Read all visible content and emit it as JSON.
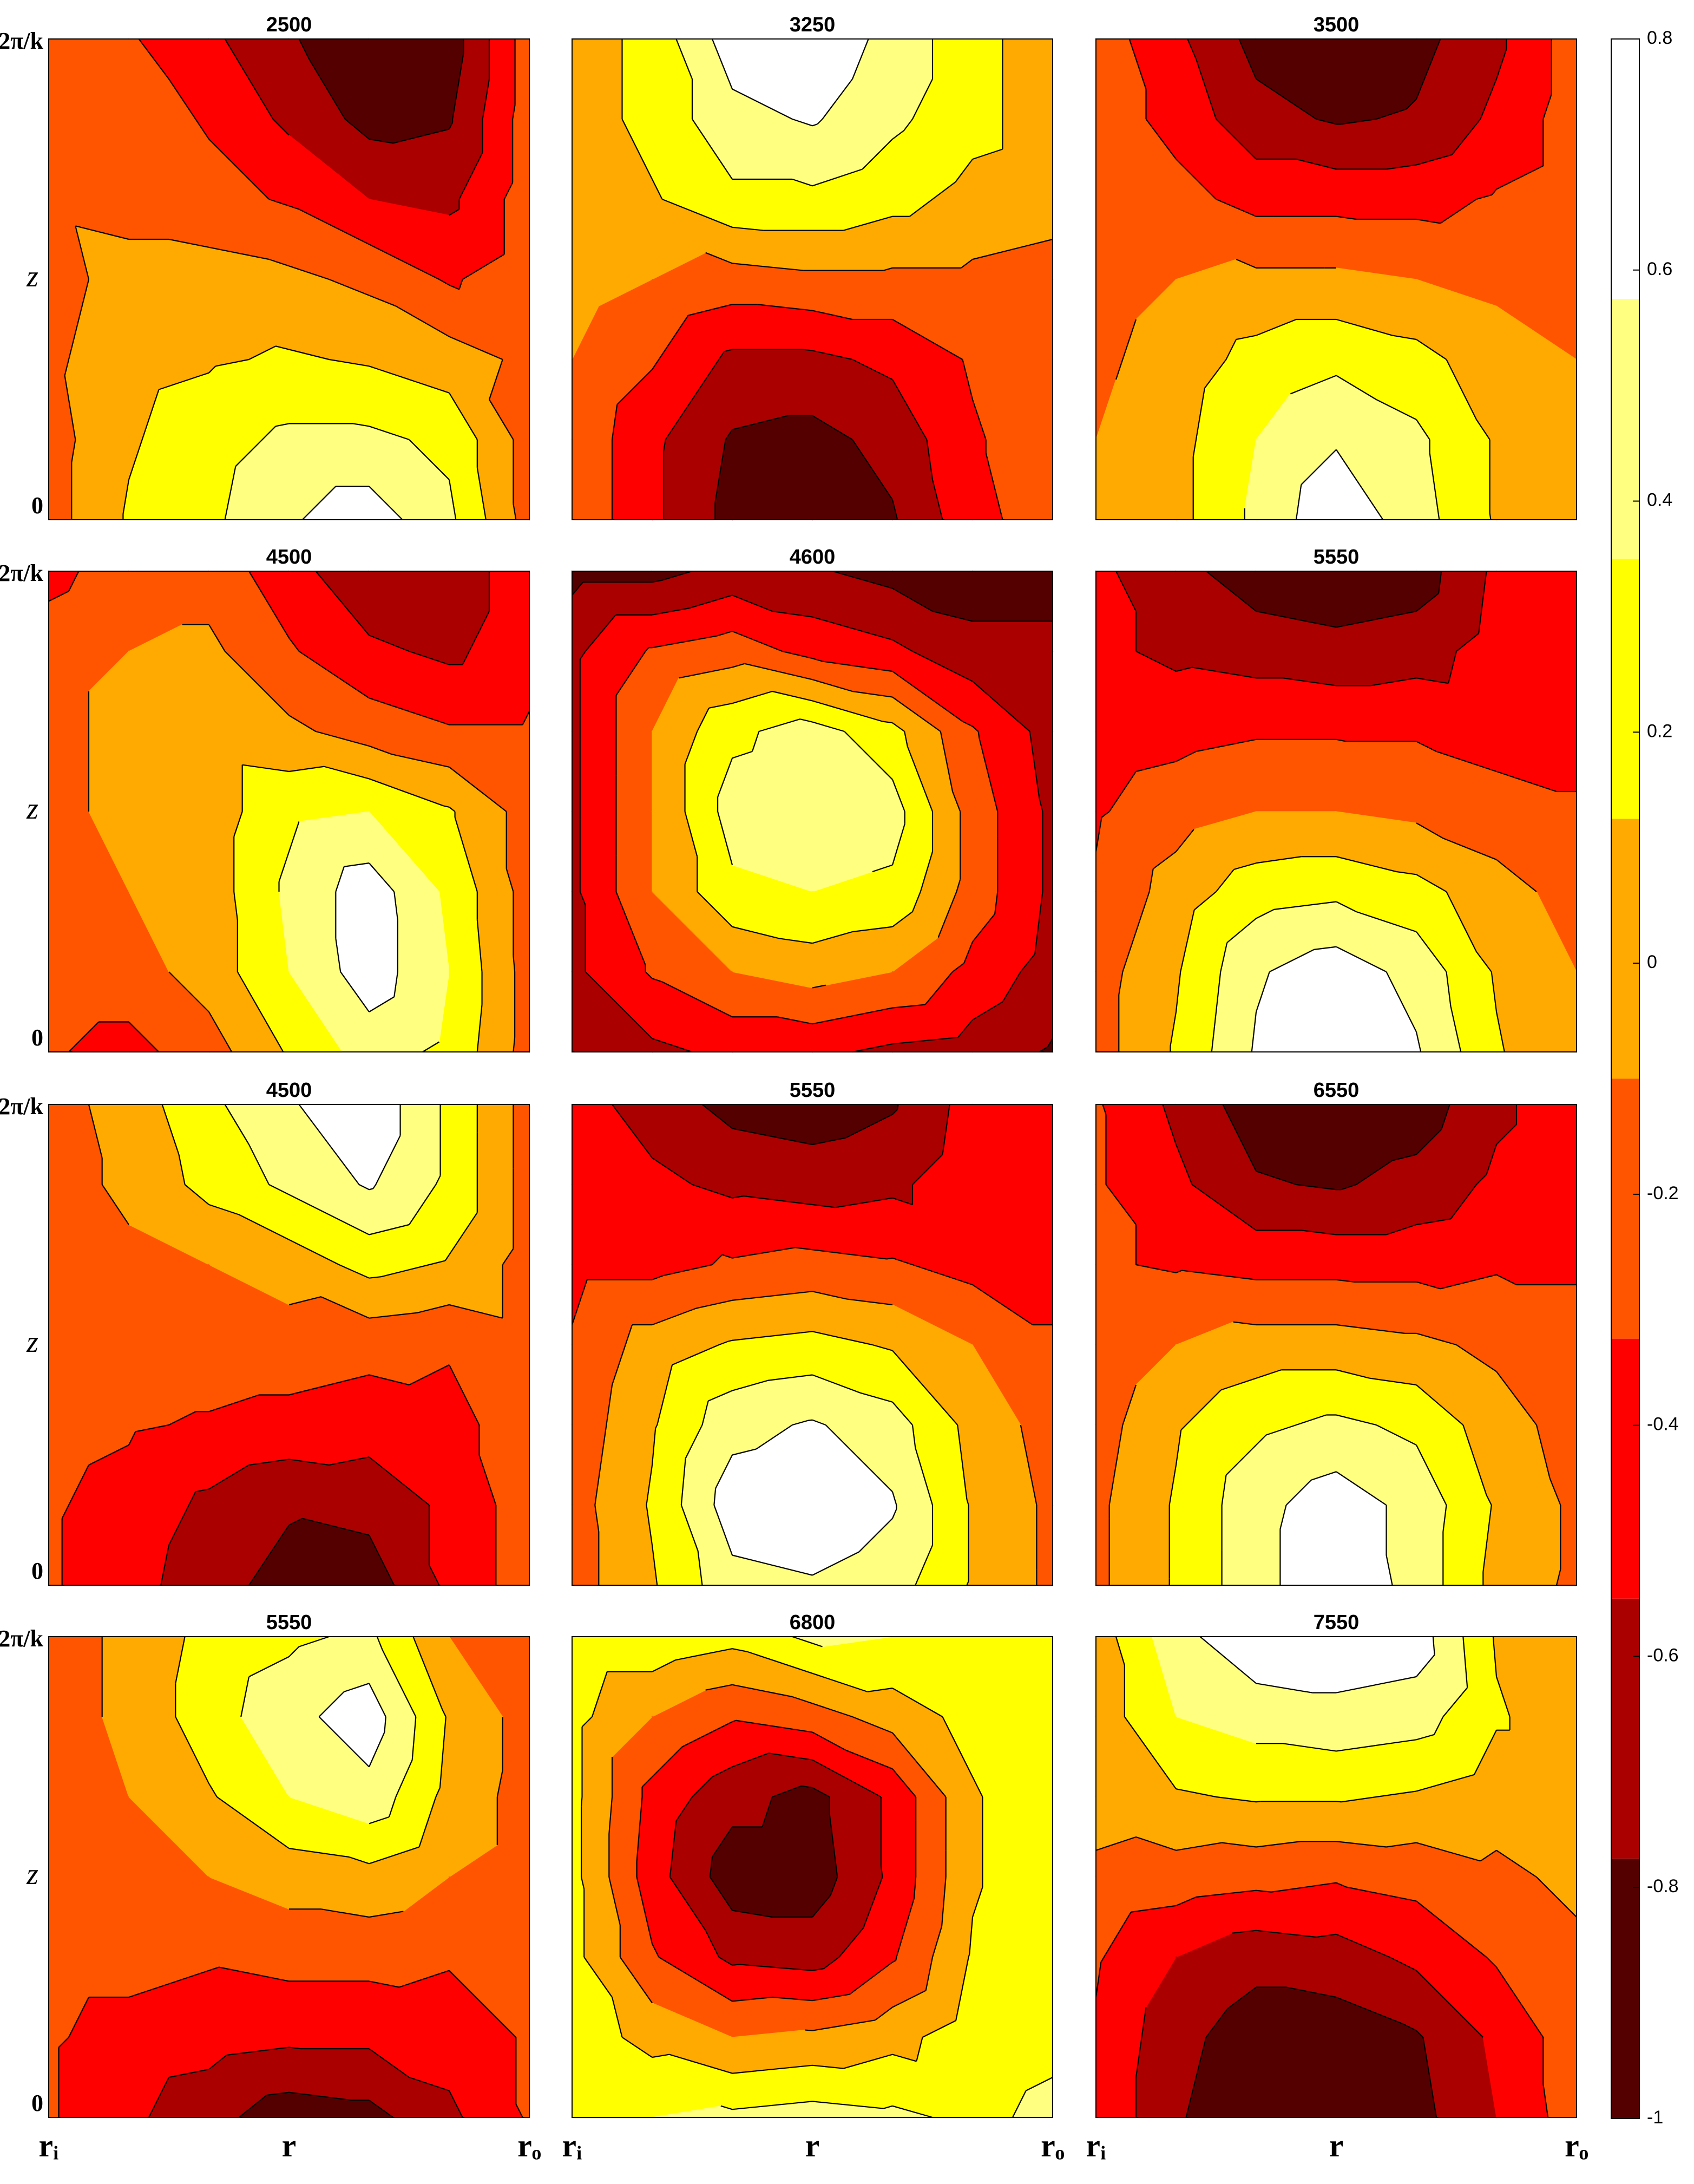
{
  "chart_data": [
    {
      "type": "contour",
      "title": "2500",
      "xlim": [
        0,
        1
      ],
      "ylim": [
        0,
        1
      ],
      "ylabel": "z",
      "yticks": [
        {
          "value": 0,
          "label": "0"
        },
        {
          "value": 1,
          "label": "2π/k"
        }
      ],
      "z": [
        [
          -0.2,
          -0.3,
          -0.5,
          -0.75,
          -0.95,
          -0.9,
          -0.2
        ],
        [
          -0.2,
          -0.2,
          -0.35,
          -0.6,
          -0.85,
          -0.8,
          -0.2
        ],
        [
          -0.15,
          -0.2,
          -0.25,
          -0.35,
          -0.55,
          -0.6,
          -0.2
        ],
        [
          -0.2,
          0.0,
          0.0,
          -0.05,
          -0.15,
          -0.35,
          -0.2
        ],
        [
          -0.15,
          0.05,
          0.1,
          0.15,
          0.1,
          0.0,
          -0.15
        ],
        [
          -0.2,
          0.1,
          0.25,
          0.4,
          0.4,
          0.3,
          -0.2
        ],
        [
          -0.2,
          0.15,
          0.3,
          0.55,
          0.7,
          0.4,
          -0.2
        ]
      ]
    },
    {
      "type": "contour",
      "title": "3250",
      "xlim": [
        0,
        1
      ],
      "ylim": [
        0,
        1
      ],
      "z": [
        [
          0.0,
          0.2,
          0.7,
          0.75,
          0.5,
          0.2,
          0.0
        ],
        [
          0.0,
          0.2,
          0.5,
          0.6,
          0.4,
          0.2,
          0.0
        ],
        [
          0.0,
          0.1,
          0.3,
          0.3,
          0.2,
          0.05,
          0.0
        ],
        [
          0.0,
          -0.1,
          -0.2,
          -0.15,
          -0.15,
          -0.15,
          -0.2
        ],
        [
          -0.1,
          -0.3,
          -0.6,
          -0.6,
          -0.5,
          -0.3,
          -0.2
        ],
        [
          -0.15,
          -0.5,
          -0.8,
          -0.85,
          -0.7,
          -0.35,
          -0.2
        ],
        [
          -0.15,
          -0.5,
          -0.85,
          -0.95,
          -0.8,
          -0.4,
          -0.2
        ]
      ]
    },
    {
      "type": "contour",
      "title": "3500",
      "xlim": [
        0,
        1
      ],
      "ylim": [
        0,
        1
      ],
      "z": [
        [
          -0.2,
          -0.5,
          -0.85,
          -0.95,
          -0.85,
          -0.6,
          -0.2
        ],
        [
          -0.2,
          -0.4,
          -0.7,
          -0.8,
          -0.75,
          -0.5,
          -0.2
        ],
        [
          -0.2,
          -0.25,
          -0.4,
          -0.4,
          -0.4,
          -0.3,
          -0.2
        ],
        [
          -0.2,
          -0.1,
          -0.05,
          -0.05,
          -0.1,
          -0.15,
          -0.2
        ],
        [
          -0.15,
          0.0,
          0.2,
          0.3,
          0.2,
          0.0,
          -0.1
        ],
        [
          -0.1,
          0.05,
          0.35,
          0.55,
          0.4,
          0.1,
          0.0
        ],
        [
          -0.05,
          0.05,
          0.4,
          0.75,
          0.45,
          0.1,
          0.0
        ]
      ]
    },
    {
      "type": "contour",
      "title": "4500",
      "xlim": [
        0,
        1
      ],
      "ylim": [
        0,
        1
      ],
      "ylabel": "z",
      "yticks": [
        {
          "value": 0,
          "label": "0"
        },
        {
          "value": 1,
          "label": "2π/k"
        }
      ],
      "z": [
        [
          -0.4,
          -0.2,
          -0.2,
          -0.45,
          -0.75,
          -0.7,
          -0.4
        ],
        [
          -0.2,
          -0.1,
          -0.05,
          -0.3,
          -0.5,
          -0.6,
          -0.4
        ],
        [
          -0.2,
          0.0,
          0.0,
          -0.05,
          -0.2,
          -0.3,
          -0.3
        ],
        [
          -0.2,
          0.0,
          0.0,
          0.3,
          0.35,
          0.15,
          -0.2
        ],
        [
          -0.2,
          -0.1,
          0.0,
          0.4,
          0.7,
          0.3,
          -0.2
        ],
        [
          -0.2,
          -0.2,
          0.0,
          0.35,
          0.7,
          0.35,
          -0.2
        ],
        [
          -0.3,
          -0.4,
          -0.2,
          0.15,
          0.45,
          0.3,
          -0.2
        ]
      ]
    },
    {
      "type": "contour",
      "title": "4600",
      "xlim": [
        0,
        1
      ],
      "ylim": [
        0,
        1
      ],
      "z": [
        [
          -0.85,
          -0.85,
          -0.7,
          -0.75,
          -0.85,
          -0.9,
          -0.9
        ],
        [
          -0.6,
          -0.3,
          -0.2,
          -0.4,
          -0.5,
          -0.7,
          -0.7
        ],
        [
          -0.6,
          -0.1,
          0.3,
          0.45,
          0.2,
          -0.3,
          -0.65
        ],
        [
          -0.6,
          -0.1,
          0.45,
          0.5,
          0.45,
          -0.2,
          -0.6
        ],
        [
          -0.6,
          -0.1,
          0.3,
          0.35,
          0.3,
          -0.2,
          -0.6
        ],
        [
          -0.6,
          -0.3,
          -0.1,
          0.0,
          -0.1,
          -0.4,
          -0.65
        ],
        [
          -0.65,
          -0.6,
          -0.5,
          -0.5,
          -0.6,
          -0.65,
          -0.8
        ]
      ]
    },
    {
      "type": "contour",
      "title": "5550",
      "xlim": [
        0,
        1
      ],
      "ylim": [
        0,
        1
      ],
      "z": [
        [
          -0.5,
          -0.7,
          -0.9,
          -0.95,
          -0.9,
          -0.5,
          -0.4
        ],
        [
          -0.5,
          -0.6,
          -0.65,
          -0.7,
          -0.65,
          -0.45,
          -0.4
        ],
        [
          -0.45,
          -0.4,
          -0.35,
          -0.35,
          -0.35,
          -0.4,
          -0.4
        ],
        [
          -0.35,
          -0.2,
          -0.1,
          -0.1,
          -0.15,
          -0.25,
          -0.3
        ],
        [
          -0.3,
          0.0,
          0.25,
          0.3,
          0.2,
          0.0,
          -0.2
        ],
        [
          -0.2,
          0.1,
          0.55,
          0.7,
          0.5,
          0.1,
          -0.1
        ],
        [
          -0.2,
          0.15,
          0.6,
          0.75,
          0.6,
          0.15,
          -0.1
        ]
      ]
    },
    {
      "type": "contour",
      "title": "4500",
      "xlim": [
        0,
        1
      ],
      "ylim": [
        0,
        1
      ],
      "ylabel": "z",
      "yticks": [
        {
          "value": 0,
          "label": "0"
        },
        {
          "value": 1,
          "label": "2π/k"
        }
      ],
      "z": [
        [
          -0.2,
          0.0,
          0.3,
          0.55,
          0.75,
          0.3,
          -0.2
        ],
        [
          -0.2,
          -0.05,
          0.2,
          0.4,
          0.6,
          0.3,
          -0.2
        ],
        [
          -0.2,
          -0.15,
          -0.1,
          0.0,
          0.2,
          0.1,
          -0.2
        ],
        [
          -0.2,
          -0.2,
          -0.2,
          -0.2,
          -0.25,
          -0.3,
          -0.2
        ],
        [
          -0.25,
          -0.3,
          -0.35,
          -0.4,
          -0.45,
          -0.4,
          -0.2
        ],
        [
          -0.3,
          -0.4,
          -0.6,
          -0.75,
          -0.7,
          -0.5,
          -0.2
        ],
        [
          -0.3,
          -0.45,
          -0.7,
          -0.85,
          -0.9,
          -0.5,
          -0.2
        ]
      ]
    },
    {
      "type": "contour",
      "title": "5550",
      "xlim": [
        0,
        1
      ],
      "ylim": [
        0,
        1
      ],
      "z": [
        [
          -0.45,
          -0.65,
          -0.85,
          -0.9,
          -0.8,
          -0.45,
          -0.4
        ],
        [
          -0.45,
          -0.5,
          -0.6,
          -0.65,
          -0.6,
          -0.4,
          -0.4
        ],
        [
          -0.4,
          -0.4,
          -0.3,
          -0.25,
          -0.3,
          -0.4,
          -0.4
        ],
        [
          -0.3,
          0.0,
          0.15,
          0.2,
          0.1,
          -0.1,
          -0.3
        ],
        [
          -0.25,
          0.1,
          0.5,
          0.6,
          0.45,
          0.05,
          -0.2
        ],
        [
          -0.2,
          0.15,
          0.7,
          0.75,
          0.6,
          0.1,
          -0.15
        ],
        [
          -0.2,
          0.1,
          0.5,
          0.55,
          0.45,
          0.1,
          -0.15
        ]
      ]
    },
    {
      "type": "contour",
      "title": "6550",
      "xlim": [
        0,
        1
      ],
      "ylim": [
        0,
        1
      ],
      "z": [
        [
          -0.3,
          -0.6,
          -0.9,
          -0.95,
          -0.9,
          -0.6,
          -0.4
        ],
        [
          -0.3,
          -0.5,
          -0.75,
          -0.8,
          -0.7,
          -0.5,
          -0.4
        ],
        [
          -0.3,
          -0.35,
          -0.4,
          -0.4,
          -0.4,
          -0.35,
          -0.35
        ],
        [
          -0.3,
          -0.1,
          0.0,
          0.0,
          -0.05,
          -0.15,
          -0.25
        ],
        [
          -0.2,
          0.1,
          0.3,
          0.4,
          0.3,
          0.0,
          -0.2
        ],
        [
          -0.15,
          0.15,
          0.5,
          0.7,
          0.5,
          0.1,
          -0.15
        ],
        [
          -0.15,
          0.15,
          0.5,
          0.75,
          0.5,
          0.05,
          -0.15
        ]
      ]
    },
    {
      "type": "contour",
      "title": "5550",
      "xlim": [
        0,
        1
      ],
      "ylim": [
        0,
        1
      ],
      "ylabel": "z",
      "yticks": [
        {
          "value": 0,
          "label": "0"
        },
        {
          "value": 1,
          "label": "2π/k"
        }
      ],
      "xlabel": "r",
      "xticks": [
        {
          "value": 0,
          "label": "rᵢ"
        },
        {
          "value": 1,
          "label": "rₒ"
        }
      ],
      "z": [
        [
          -0.2,
          -0.05,
          0.2,
          0.3,
          0.4,
          -0.1,
          -0.2
        ],
        [
          -0.2,
          -0.05,
          0.25,
          0.5,
          0.7,
          0.1,
          -0.2
        ],
        [
          -0.2,
          -0.1,
          0.1,
          0.35,
          0.5,
          0.05,
          -0.2
        ],
        [
          -0.2,
          -0.2,
          -0.1,
          0.0,
          0.05,
          -0.1,
          -0.2
        ],
        [
          -0.25,
          -0.25,
          -0.3,
          -0.25,
          -0.25,
          -0.3,
          -0.25
        ],
        [
          -0.3,
          -0.4,
          -0.45,
          -0.5,
          -0.5,
          -0.45,
          -0.3
        ],
        [
          -0.3,
          -0.5,
          -0.7,
          -0.9,
          -0.85,
          -0.6,
          -0.3
        ]
      ]
    },
    {
      "type": "contour",
      "title": "6800",
      "xlim": [
        0,
        1
      ],
      "ylim": [
        0,
        1
      ],
      "xlabel": "r",
      "xticks": [
        {
          "value": 0,
          "label": "rᵢ"
        },
        {
          "value": 1,
          "label": "rₒ"
        }
      ],
      "z": [
        [
          0.3,
          0.3,
          0.2,
          0.4,
          0.35,
          0.3,
          0.3
        ],
        [
          0.2,
          -0.1,
          -0.3,
          -0.2,
          0.0,
          0.2,
          0.3
        ],
        [
          0.2,
          -0.4,
          -0.7,
          -0.85,
          -0.5,
          0.1,
          0.3
        ],
        [
          0.2,
          -0.45,
          -0.9,
          -0.9,
          -0.5,
          0.1,
          0.3
        ],
        [
          0.2,
          -0.3,
          -0.6,
          -0.65,
          -0.35,
          0.15,
          0.3
        ],
        [
          0.25,
          0.05,
          -0.1,
          -0.05,
          0.05,
          0.25,
          0.3
        ],
        [
          0.3,
          0.35,
          0.4,
          0.45,
          0.4,
          0.3,
          0.4
        ]
      ]
    },
    {
      "type": "contour",
      "title": "7550",
      "xlim": [
        0,
        1
      ],
      "ylim": [
        0,
        1
      ],
      "xlabel": "r",
      "xticks": [
        {
          "value": 0,
          "label": "rᵢ"
        },
        {
          "value": 1,
          "label": "rₒ"
        }
      ],
      "z": [
        [
          0.0,
          0.5,
          0.75,
          0.75,
          0.7,
          0.1,
          0.0
        ],
        [
          0.0,
          0.35,
          0.45,
          0.5,
          0.45,
          0.15,
          0.0
        ],
        [
          0.0,
          0.1,
          0.15,
          0.15,
          0.1,
          0.0,
          0.0
        ],
        [
          -0.15,
          -0.2,
          -0.25,
          -0.3,
          -0.25,
          -0.15,
          -0.05
        ],
        [
          -0.3,
          -0.55,
          -0.7,
          -0.65,
          -0.5,
          -0.3,
          -0.15
        ],
        [
          -0.35,
          -0.7,
          -0.9,
          -0.9,
          -0.8,
          -0.5,
          -0.2
        ],
        [
          -0.35,
          -0.75,
          -0.95,
          -0.95,
          -0.85,
          -0.55,
          -0.2
        ]
      ]
    },
    {
      "type": "colorbar",
      "ylim": [
        -1,
        0.8
      ],
      "yticks": [
        -1,
        -0.8,
        -0.6,
        -0.4,
        -0.2,
        0,
        0.2,
        0.4,
        0.6,
        0.8
      ],
      "levels": [
        -1,
        -0.775,
        -0.55,
        -0.325,
        -0.1,
        0.125,
        0.35,
        0.575,
        0.8
      ],
      "colors": [
        "#550000",
        "#aa0000",
        "#ff0000",
        "#ff5500",
        "#ffaa00",
        "#ffff00",
        "#ffff80",
        "#ffffff"
      ]
    }
  ]
}
